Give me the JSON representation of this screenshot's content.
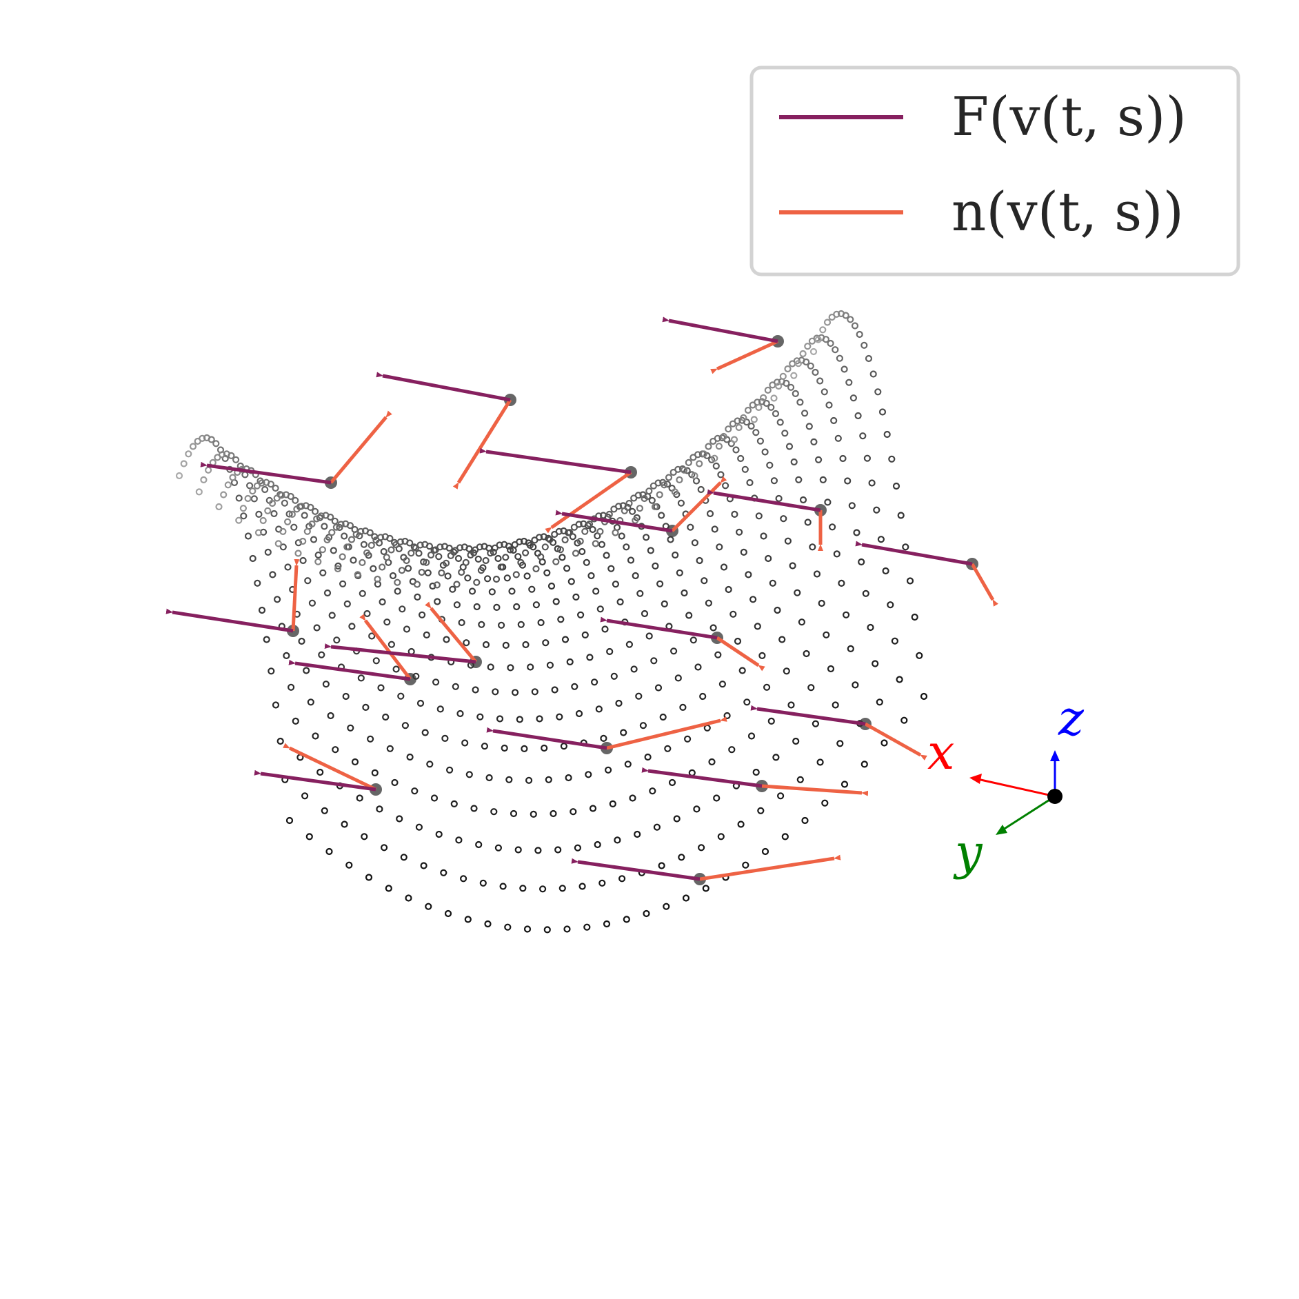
{
  "legend": {
    "entries": [
      {
        "label": "F(v(t, s))",
        "color": "#86205F"
      },
      {
        "label": "n(v(t, s))",
        "color": "#EE6244"
      }
    ]
  },
  "axes_triad": {
    "x": {
      "label": "x",
      "color": "#ff0000"
    },
    "y": {
      "label": "y",
      "color": "#008000"
    },
    "z": {
      "label": "z",
      "color": "#0000ff"
    }
  },
  "colors": {
    "surface_points": "#000000",
    "force_vectors": "#86205F",
    "normal_vectors": "#EE6244"
  },
  "surface": {
    "type": "saddle point cloud",
    "t_samples": 33,
    "s_samples": 25,
    "marker": "open-circle"
  },
  "vector_count": 16
}
